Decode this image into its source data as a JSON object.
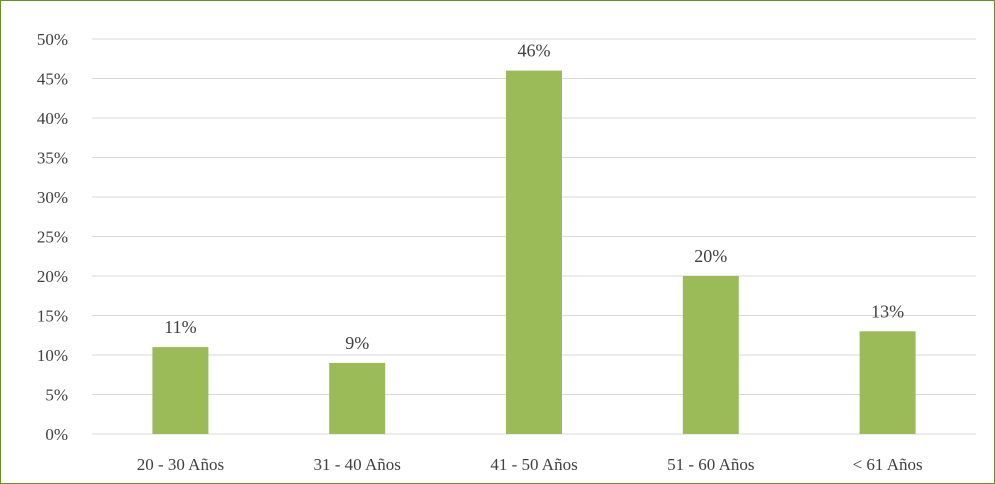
{
  "chart_data": {
    "type": "bar",
    "title": "",
    "xlabel": "",
    "ylabel": "",
    "categories": [
      "20 - 30 Años",
      "31 - 40 Años",
      "41 - 50 Años",
      "51 - 60 Años",
      "< 61 Años"
    ],
    "values": [
      11,
      9,
      46,
      20,
      13
    ],
    "value_labels": [
      "11%",
      "9%",
      "46%",
      "20%",
      "13%"
    ],
    "value_format": "percent",
    "ylim": [
      0,
      50
    ],
    "yticks": [
      0,
      5,
      10,
      15,
      20,
      25,
      30,
      35,
      40,
      45,
      50
    ],
    "ytick_labels": [
      "0%",
      "5%",
      "10%",
      "15%",
      "20%",
      "25%",
      "30%",
      "35%",
      "40%",
      "45%",
      "50%"
    ],
    "grid": true,
    "legend": "none",
    "colors": {
      "bar": "#9bbb59",
      "grid": "#d9d9d9",
      "border": "#6b8e23",
      "text": "#404040"
    }
  }
}
